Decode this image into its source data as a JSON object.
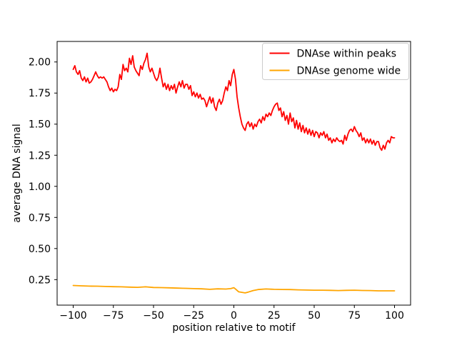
{
  "figure": {
    "background_color": "#ffffff",
    "axes_edge_color": "#000000",
    "legend_border_color": "#cccccc",
    "legend_background_color": "#ffffff"
  },
  "chart_data": {
    "type": "line",
    "title": "",
    "xlabel": "position relative to motif",
    "ylabel": "average DNA signal",
    "xlim": [
      -110,
      110
    ],
    "ylim": [
      0.045,
      2.165
    ],
    "grid": false,
    "legend_position": "upper right",
    "x_ticks": [
      -100,
      -75,
      -50,
      -25,
      0,
      25,
      50,
      75,
      100
    ],
    "x_tick_labels": [
      "−100",
      "−75",
      "−50",
      "−25",
      "0",
      "25",
      "50",
      "75",
      "100"
    ],
    "y_ticks": [
      0.25,
      0.5,
      0.75,
      1.0,
      1.25,
      1.5,
      1.75,
      2.0
    ],
    "y_tick_labels": [
      "0.25",
      "0.50",
      "0.75",
      "1.00",
      "1.25",
      "1.50",
      "1.75",
      "2.00"
    ],
    "series": [
      {
        "name": "DNAse within peaks",
        "color": "#ff0000",
        "linewidth": 1.8,
        "x": [
          -100,
          -99,
          -98,
          -97,
          -96,
          -95,
          -94,
          -93,
          -92,
          -91,
          -90,
          -89,
          -88,
          -87,
          -86,
          -85,
          -84,
          -83,
          -82,
          -81,
          -80,
          -79,
          -78,
          -77,
          -76,
          -75,
          -74,
          -73,
          -72,
          -71,
          -70,
          -69,
          -68,
          -67,
          -66,
          -65,
          -64,
          -63,
          -62,
          -61,
          -60,
          -59,
          -58,
          -57,
          -56,
          -55,
          -54,
          -53,
          -52,
          -51,
          -50,
          -49,
          -48,
          -47,
          -46,
          -45,
          -44,
          -43,
          -42,
          -41,
          -40,
          -39,
          -38,
          -37,
          -36,
          -35,
          -34,
          -33,
          -32,
          -31,
          -30,
          -29,
          -28,
          -27,
          -26,
          -25,
          -24,
          -23,
          -22,
          -21,
          -20,
          -19,
          -18,
          -17,
          -16,
          -15,
          -14,
          -13,
          -12,
          -11,
          -10,
          -9,
          -8,
          -7,
          -6,
          -5,
          -4,
          -3,
          -2,
          -1,
          0,
          1,
          2,
          3,
          4,
          5,
          6,
          7,
          8,
          9,
          10,
          11,
          12,
          13,
          14,
          15,
          16,
          17,
          18,
          19,
          20,
          21,
          22,
          23,
          24,
          25,
          26,
          27,
          28,
          29,
          30,
          31,
          32,
          33,
          34,
          35,
          36,
          37,
          38,
          39,
          40,
          41,
          42,
          43,
          44,
          45,
          46,
          47,
          48,
          49,
          50,
          51,
          52,
          53,
          54,
          55,
          56,
          57,
          58,
          59,
          60,
          61,
          62,
          63,
          64,
          65,
          66,
          67,
          68,
          69,
          70,
          71,
          72,
          73,
          74,
          75,
          76,
          77,
          78,
          79,
          80,
          81,
          82,
          83,
          84,
          85,
          86,
          87,
          88,
          89,
          90,
          91,
          92,
          93,
          94,
          95,
          96,
          97,
          98,
          99,
          100
        ],
        "y": [
          1.94,
          1.97,
          1.92,
          1.9,
          1.93,
          1.87,
          1.85,
          1.88,
          1.84,
          1.87,
          1.83,
          1.84,
          1.86,
          1.89,
          1.92,
          1.89,
          1.87,
          1.88,
          1.87,
          1.88,
          1.86,
          1.84,
          1.8,
          1.77,
          1.79,
          1.76,
          1.78,
          1.77,
          1.8,
          1.9,
          1.86,
          1.98,
          1.93,
          1.95,
          1.92,
          2.03,
          1.98,
          2.05,
          1.96,
          1.93,
          1.91,
          1.89,
          1.97,
          1.94,
          1.99,
          2.02,
          2.07,
          1.96,
          1.92,
          1.95,
          1.91,
          1.87,
          1.85,
          1.88,
          1.95,
          1.87,
          1.8,
          1.83,
          1.78,
          1.82,
          1.77,
          1.81,
          1.78,
          1.82,
          1.75,
          1.8,
          1.84,
          1.8,
          1.85,
          1.79,
          1.82,
          1.82,
          1.78,
          1.81,
          1.73,
          1.76,
          1.72,
          1.75,
          1.71,
          1.74,
          1.7,
          1.71,
          1.69,
          1.64,
          1.68,
          1.72,
          1.67,
          1.71,
          1.64,
          1.61,
          1.67,
          1.7,
          1.66,
          1.69,
          1.75,
          1.8,
          1.77,
          1.85,
          1.81,
          1.9,
          1.94,
          1.86,
          1.72,
          1.63,
          1.56,
          1.5,
          1.47,
          1.45,
          1.5,
          1.52,
          1.48,
          1.51,
          1.46,
          1.5,
          1.48,
          1.52,
          1.54,
          1.51,
          1.56,
          1.53,
          1.58,
          1.56,
          1.59,
          1.57,
          1.61,
          1.64,
          1.66,
          1.67,
          1.61,
          1.63,
          1.56,
          1.6,
          1.53,
          1.57,
          1.5,
          1.59,
          1.52,
          1.55,
          1.47,
          1.53,
          1.46,
          1.51,
          1.44,
          1.49,
          1.43,
          1.47,
          1.42,
          1.46,
          1.41,
          1.45,
          1.4,
          1.44,
          1.43,
          1.39,
          1.43,
          1.41,
          1.44,
          1.39,
          1.42,
          1.37,
          1.39,
          1.35,
          1.38,
          1.36,
          1.39,
          1.37,
          1.36,
          1.37,
          1.34,
          1.41,
          1.37,
          1.42,
          1.45,
          1.46,
          1.44,
          1.48,
          1.45,
          1.43,
          1.4,
          1.43,
          1.37,
          1.39,
          1.35,
          1.38,
          1.35,
          1.38,
          1.34,
          1.37,
          1.33,
          1.36,
          1.36,
          1.31,
          1.29,
          1.33,
          1.3,
          1.35,
          1.37,
          1.35,
          1.4,
          1.39,
          1.39
        ]
      },
      {
        "name": "DNAse genome wide",
        "color": "#ffa500",
        "linewidth": 1.8,
        "x": [
          -100,
          -95,
          -90,
          -85,
          -80,
          -75,
          -70,
          -65,
          -60,
          -55,
          -50,
          -45,
          -40,
          -35,
          -30,
          -25,
          -20,
          -15,
          -10,
          -5,
          -2,
          0,
          1,
          3,
          5,
          7,
          9,
          12,
          15,
          20,
          25,
          30,
          35,
          40,
          45,
          50,
          55,
          60,
          65,
          70,
          75,
          80,
          85,
          90,
          95,
          100
        ],
        "y": [
          0.203,
          0.2,
          0.198,
          0.197,
          0.195,
          0.193,
          0.192,
          0.19,
          0.188,
          0.192,
          0.187,
          0.186,
          0.184,
          0.182,
          0.18,
          0.178,
          0.176,
          0.172,
          0.176,
          0.174,
          0.178,
          0.185,
          0.175,
          0.152,
          0.148,
          0.143,
          0.15,
          0.162,
          0.17,
          0.175,
          0.172,
          0.171,
          0.17,
          0.168,
          0.166,
          0.165,
          0.165,
          0.164,
          0.162,
          0.164,
          0.165,
          0.163,
          0.162,
          0.16,
          0.16,
          0.16
        ]
      }
    ]
  }
}
